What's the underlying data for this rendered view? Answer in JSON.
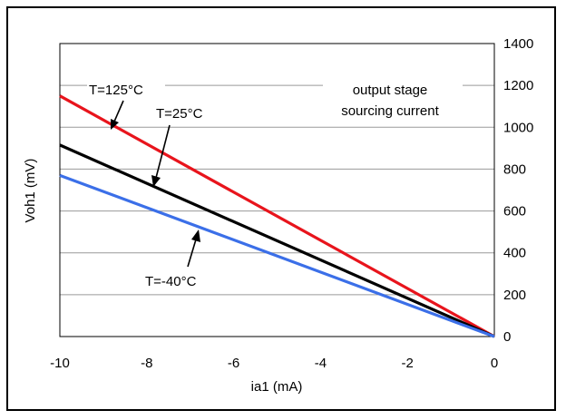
{
  "chart_data": {
    "type": "line",
    "xlabel": "ia1 (mA)",
    "ylabel": "Voh1 (mV)",
    "xlim": [
      -10,
      0
    ],
    "ylim": [
      0,
      1400
    ],
    "xticks": [
      -10,
      -8,
      -6,
      -4,
      -2,
      0
    ],
    "yticks": [
      0,
      200,
      400,
      600,
      800,
      1000,
      1200,
      1400
    ],
    "y_axis_side": "right",
    "grid": "horizontal",
    "series": [
      {
        "name": "T=125°C",
        "color": "#e8141c",
        "x": [
          -10,
          0
        ],
        "y": [
          1150,
          0
        ]
      },
      {
        "name": "T=25°C",
        "color": "#000000",
        "x": [
          -10,
          0
        ],
        "y": [
          915,
          0
        ]
      },
      {
        "name": "T=-40°C",
        "color": "#3b6fe8",
        "x": [
          -10,
          0
        ],
        "y": [
          770,
          0
        ]
      }
    ],
    "annotations": [
      {
        "text": "T=125°C"
      },
      {
        "text": "T=25°C"
      },
      {
        "text": "T=-40°C"
      },
      {
        "text": "output stage"
      },
      {
        "text": "sourcing current"
      }
    ]
  }
}
